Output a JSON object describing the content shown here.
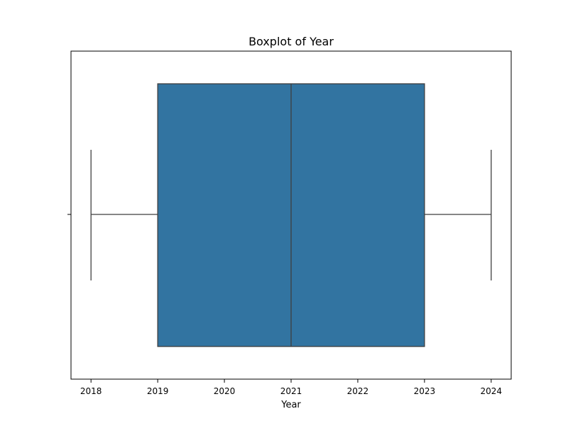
{
  "chart_data": {
    "type": "boxplot",
    "title": "Boxplot of Year",
    "xlabel": "Year",
    "ylabel": "",
    "orientation": "horizontal",
    "xlim": [
      2017.7,
      2024.3
    ],
    "xticks": [
      2018,
      2019,
      2020,
      2021,
      2022,
      2023,
      2024
    ],
    "xtick_labels": [
      "2018",
      "2019",
      "2020",
      "2021",
      "2022",
      "2023",
      "2024"
    ],
    "grid": false,
    "series": [
      {
        "whisker_low": 2018,
        "q1": 2019,
        "median": 2021,
        "q3": 2023,
        "whisker_high": 2024
      }
    ],
    "colors": {
      "box_fill": "#3274a1",
      "line": "#3f3f3f",
      "axes": "#000000",
      "background": "#ffffff"
    }
  }
}
